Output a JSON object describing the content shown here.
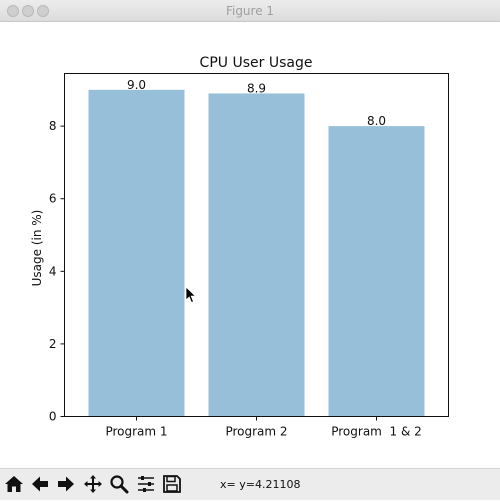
{
  "window": {
    "title": "Figure 1"
  },
  "chart_data": {
    "type": "bar",
    "title": "CPU User Usage",
    "xlabel": "",
    "ylabel": "Usage (in %)",
    "categories": [
      "Program 1",
      "Program 2",
      "Program  1 & 2"
    ],
    "values": [
      9.0,
      8.9,
      8.0
    ],
    "data_labels": [
      "9.0",
      "8.9",
      "8.0"
    ],
    "ylim": [
      0,
      9.45
    ],
    "yticks": [
      0,
      2,
      4,
      6,
      8
    ],
    "ytick_labels": [
      "0",
      "2",
      "4",
      "6",
      "8"
    ],
    "bar_color": "#97bfd9",
    "grid": false,
    "legend": "none"
  },
  "toolbar": {
    "buttons": [
      {
        "name": "home-icon",
        "glyph": "home"
      },
      {
        "name": "back-arrow-icon",
        "glyph": "back"
      },
      {
        "name": "forward-arrow-icon",
        "glyph": "forward"
      },
      {
        "name": "pan-move-icon",
        "glyph": "pan"
      },
      {
        "name": "zoom-magnifier-icon",
        "glyph": "zoom"
      },
      {
        "name": "subplots-sliders-icon",
        "glyph": "subplots"
      },
      {
        "name": "save-disk-icon",
        "glyph": "save"
      }
    ],
    "readout": "x= y=4.21108"
  }
}
